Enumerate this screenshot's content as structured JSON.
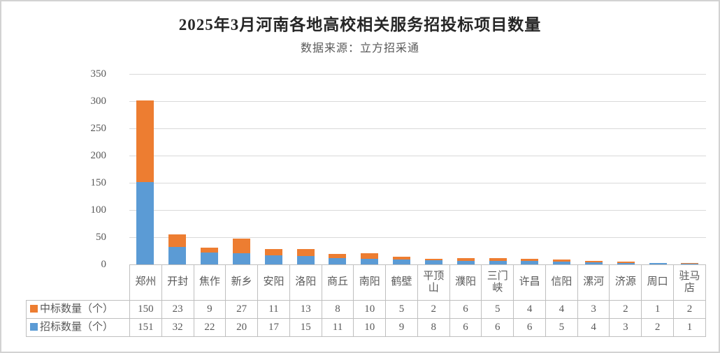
{
  "title": "2025年3月河南各地高校相关服务招投标项目数量",
  "subtitle": "数据来源：立方招采通",
  "style": {
    "win_bid_color": "#ED7D31",
    "tender_color": "#5B9BD5",
    "gridline_color": "#D9D9D9",
    "text_color": "#595959",
    "title_color": "#262626",
    "table_border_color": "#BFBFBF"
  },
  "chart_data": {
    "type": "bar",
    "stacked": true,
    "title": "2025年3月河南各地高校相关服务招投标项目数量",
    "subtitle": "数据来源：立方招采通",
    "categories": [
      "郑州",
      "开封",
      "焦作",
      "新乡",
      "安阳",
      "洛阳",
      "商丘",
      "南阳",
      "鹤壁",
      "平顶山",
      "濮阳",
      "三门峡",
      "许昌",
      "信阳",
      "漯河",
      "济源",
      "周口",
      "驻马店"
    ],
    "series": [
      {
        "name": "中标数量（个）",
        "color": "#ED7D31",
        "stack_position": "top",
        "values": [
          150,
          23,
          9,
          27,
          11,
          13,
          8,
          10,
          5,
          2,
          6,
          5,
          4,
          4,
          3,
          2,
          1,
          2
        ]
      },
      {
        "name": "招标数量（个）",
        "color": "#5B9BD5",
        "stack_position": "bottom",
        "values": [
          151,
          32,
          22,
          20,
          17,
          15,
          11,
          10,
          9,
          8,
          6,
          6,
          6,
          5,
          4,
          3,
          2,
          1
        ]
      }
    ],
    "xlabel": "",
    "ylabel": "",
    "ylim": [
      0,
      350
    ],
    "ytick_interval": 50,
    "yticks": [
      0,
      50,
      100,
      150,
      200,
      250,
      300,
      350
    ],
    "grid": true,
    "legend_position": "data-table-left"
  }
}
